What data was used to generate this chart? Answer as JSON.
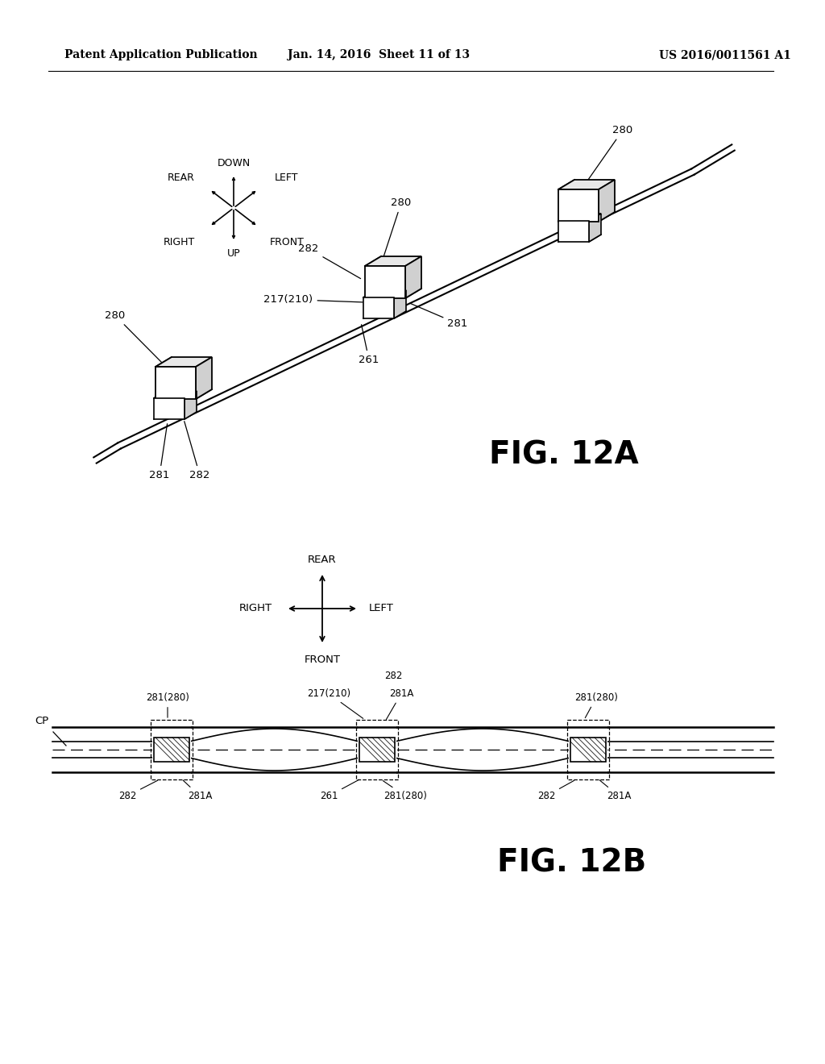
{
  "bg_color": "#ffffff",
  "header_left": "Patent Application Publication",
  "header_mid": "Jan. 14, 2016  Sheet 11 of 13",
  "header_right": "US 2016/0011561 A1",
  "fig12a_label": "FIG. 12A",
  "fig12b_label": "FIG. 12B"
}
